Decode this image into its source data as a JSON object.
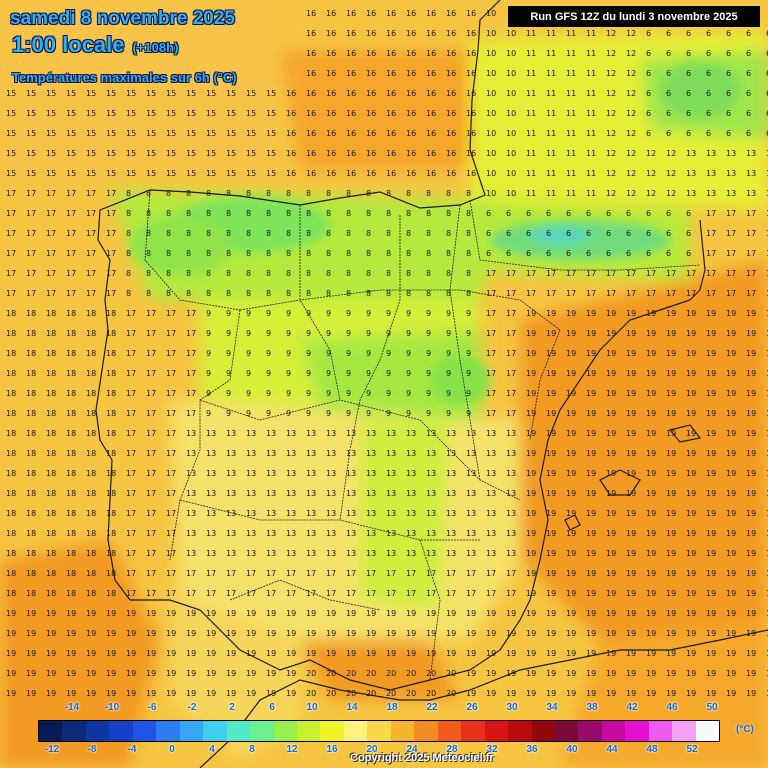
{
  "header": {
    "date_line": "samedi 8 novembre 2025",
    "time_line": "1:00 locale",
    "offset": "(+108h)",
    "parameter": "Températures maximales sur 6h (°C)"
  },
  "run_info": "Run GFS 12Z du lundi 3 novembre 2025",
  "copyright": "Copyright 2025 Meteociel.fr",
  "legend": {
    "unit": "(°C)",
    "top_labels": [
      "-14",
      "-10",
      "-6",
      "-2",
      "2",
      "6",
      "10",
      "14",
      "18",
      "22",
      "26",
      "30",
      "34",
      "38",
      "42",
      "46",
      "50"
    ],
    "bottom_labels": [
      "-12",
      "-8",
      "-4",
      "0",
      "4",
      "8",
      "12",
      "16",
      "20",
      "24",
      "28",
      "32",
      "36",
      "40",
      "44",
      "48",
      "52"
    ],
    "colors": [
      "#0a1a55",
      "#0d2a7a",
      "#0e36a0",
      "#1740c8",
      "#1f55e6",
      "#2b7ef0",
      "#35a8f3",
      "#3fd0f0",
      "#52e8c8",
      "#6cf08e",
      "#96f04e",
      "#c8f02e",
      "#eef526",
      "#fff27a",
      "#f8d848",
      "#f6b42c",
      "#f48a22",
      "#ef5c1d",
      "#e83118",
      "#d81414",
      "#b80d0d",
      "#900a0a",
      "#7a0a3a",
      "#9a0a6a",
      "#c40aa0",
      "#e60fd0",
      "#f05af0",
      "#f4a0f4",
      "#fafafa"
    ]
  }
}
